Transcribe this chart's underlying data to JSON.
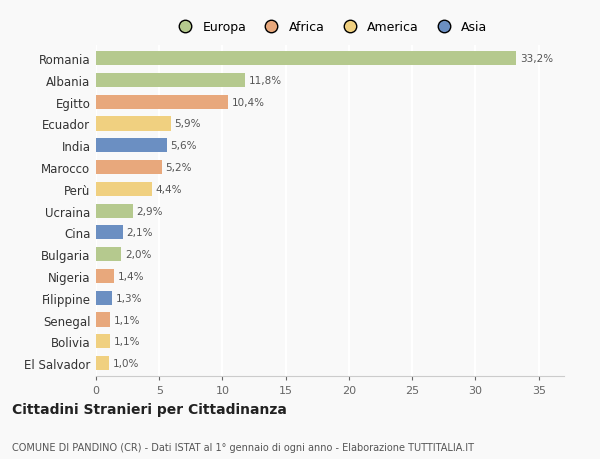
{
  "countries": [
    "Romania",
    "Albania",
    "Egitto",
    "Ecuador",
    "India",
    "Marocco",
    "Perù",
    "Ucraina",
    "Cina",
    "Bulgaria",
    "Nigeria",
    "Filippine",
    "Senegal",
    "Bolivia",
    "El Salvador"
  ],
  "values": [
    33.2,
    11.8,
    10.4,
    5.9,
    5.6,
    5.2,
    4.4,
    2.9,
    2.1,
    2.0,
    1.4,
    1.3,
    1.1,
    1.1,
    1.0
  ],
  "labels": [
    "33,2%",
    "11,8%",
    "10,4%",
    "5,9%",
    "5,6%",
    "5,2%",
    "4,4%",
    "2,9%",
    "2,1%",
    "2,0%",
    "1,4%",
    "1,3%",
    "1,1%",
    "1,1%",
    "1,0%"
  ],
  "colors": [
    "#b5c98e",
    "#b5c98e",
    "#e8a87c",
    "#f0d080",
    "#6b8fc2",
    "#e8a87c",
    "#f0d080",
    "#b5c98e",
    "#6b8fc2",
    "#b5c98e",
    "#e8a87c",
    "#6b8fc2",
    "#e8a87c",
    "#f0d080",
    "#f0d080"
  ],
  "legend": [
    {
      "label": "Europa",
      "color": "#b5c98e"
    },
    {
      "label": "Africa",
      "color": "#e8a87c"
    },
    {
      "label": "America",
      "color": "#f0d080"
    },
    {
      "label": "Asia",
      "color": "#6b8fc2"
    }
  ],
  "title": "Cittadini Stranieri per Cittadinanza",
  "subtitle": "COMUNE DI PANDINO (CR) - Dati ISTAT al 1° gennaio di ogni anno - Elaborazione TUTTITALIA.IT",
  "xlim": [
    0,
    37
  ],
  "xticks": [
    0,
    5,
    10,
    15,
    20,
    25,
    30,
    35
  ],
  "background_color": "#f9f9f9",
  "grid_color": "#ffffff"
}
